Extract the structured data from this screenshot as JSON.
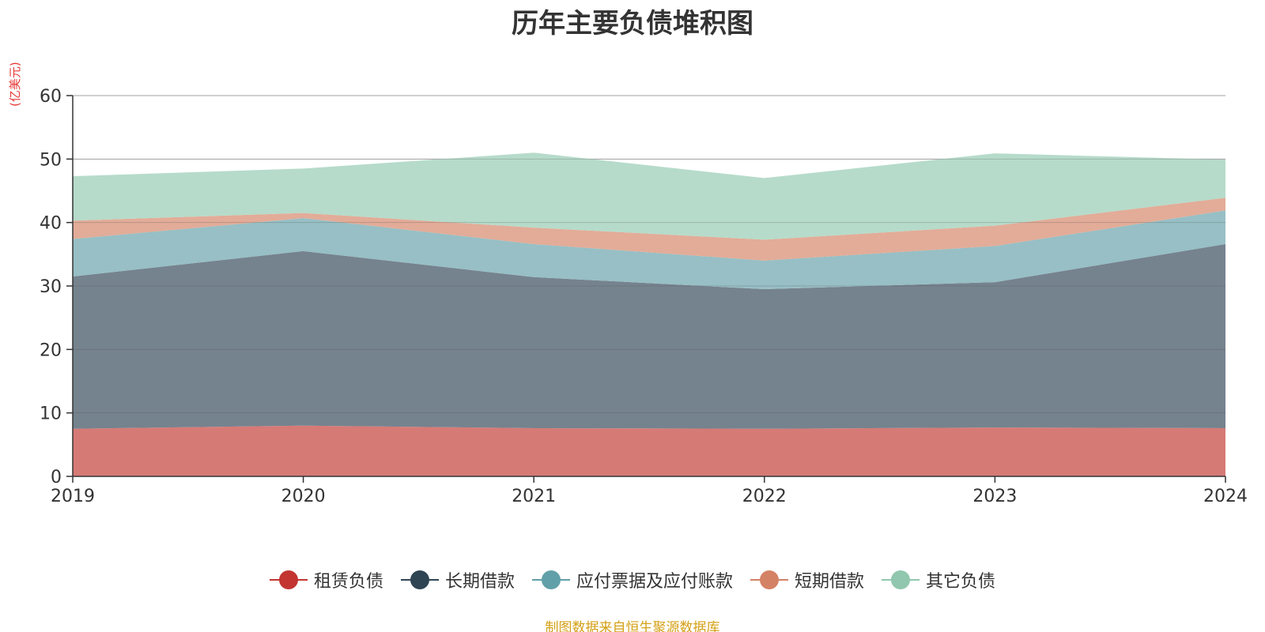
{
  "chart_data": {
    "type": "area",
    "stacked": true,
    "title": "历年主要负债堆积图",
    "unit_label": "(亿美元)",
    "categories": [
      "2019",
      "2020",
      "2021",
      "2022",
      "2023",
      "2024"
    ],
    "ylim": [
      0,
      60
    ],
    "yticks": [
      0,
      10,
      20,
      30,
      40,
      50,
      60
    ],
    "grid": true,
    "legend_position": "bottom-center",
    "series": [
      {
        "name": "租赁负债",
        "color": "#c23531",
        "fill": "#d4736f",
        "values": [
          7.5,
          8.0,
          7.6,
          7.5,
          7.7,
          7.6
        ]
      },
      {
        "name": "长期借款",
        "color": "#2f4554",
        "fill": "#6e7c88",
        "values": [
          24.0,
          27.5,
          23.8,
          22.0,
          22.9,
          29.0
        ]
      },
      {
        "name": "应付票据及应付账款",
        "color": "#61a0a8",
        "fill": "#91bcc2",
        "values": [
          5.9,
          5.2,
          5.2,
          4.5,
          5.7,
          5.3
        ]
      },
      {
        "name": "短期借款",
        "color": "#d48265",
        "fill": "#e0a892",
        "values": [
          2.9,
          0.8,
          2.6,
          3.3,
          3.2,
          2.0
        ]
      },
      {
        "name": "其它负债",
        "color": "#91c7ae",
        "fill": "#b2d9c7",
        "values": [
          7.0,
          7.0,
          11.8,
          9.7,
          11.4,
          6.0
        ]
      }
    ]
  },
  "source_text": "制图数据来自恒生聚源数据库"
}
